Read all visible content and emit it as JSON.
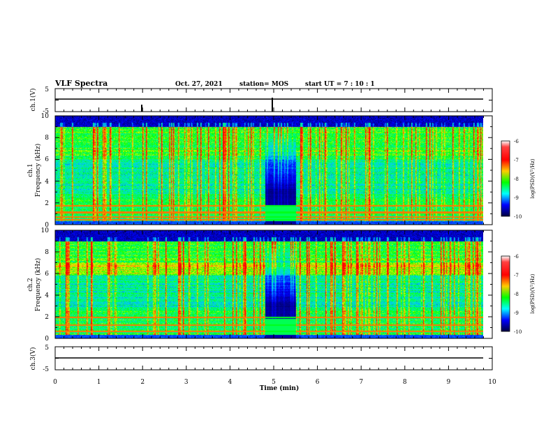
{
  "header": {
    "title": "VLF Spectra",
    "date": "Oct. 27, 2021",
    "station": "station= MOS",
    "start": "start  UT  =   7 : 10 : 1"
  },
  "panels": {
    "ch1_voltage": {
      "ylabel": "ch.1(V)",
      "ticks": [
        "5",
        "-5"
      ]
    },
    "ch1_spectrum": {
      "ylabel_top": "ch.1",
      "ylabel": "Frequency (kHz)"
    },
    "ch2_spectrum": {
      "ylabel_top": "ch.2",
      "ylabel": "Frequency (kHz)"
    },
    "ch3_voltage": {
      "ylabel": "ch.3(V)",
      "ticks": [
        "5",
        "-5"
      ]
    }
  },
  "colorbar": {
    "label": "log(PSD)(V²/Hz)",
    "ticks": [
      "-6",
      "-7",
      "-8",
      "-9",
      "-10"
    ],
    "colors": [
      "#ff0000",
      "#ff8800",
      "#ffff00",
      "#00ff00",
      "#00ffff",
      "#0000ff",
      "#000060"
    ]
  },
  "chart_data": {
    "type": "heatmap",
    "title": "VLF Spectra",
    "xlabel": "Time (min)",
    "xlim": [
      0,
      10
    ],
    "x_ticks": [
      "0",
      "1",
      "2",
      "3",
      "4",
      "5",
      "6",
      "7",
      "8",
      "9",
      "10"
    ],
    "data_end_min": 9.85,
    "ylabel": "Frequency (kHz)",
    "ylim": [
      0,
      10
    ],
    "y_ticks": [
      "0",
      "2",
      "4",
      "6",
      "8",
      "10"
    ],
    "clim": [
      -10,
      -6
    ],
    "quiet_interval_min": [
      4.8,
      5.5
    ],
    "ch1_persistent_lines_khz": [
      0.4,
      0.7,
      1.1,
      1.7
    ],
    "ch2_persistent_lines_khz": [
      0.6,
      1.2,
      1.9
    ],
    "ch2_band_khz": [
      5.8,
      7.0
    ]
  }
}
